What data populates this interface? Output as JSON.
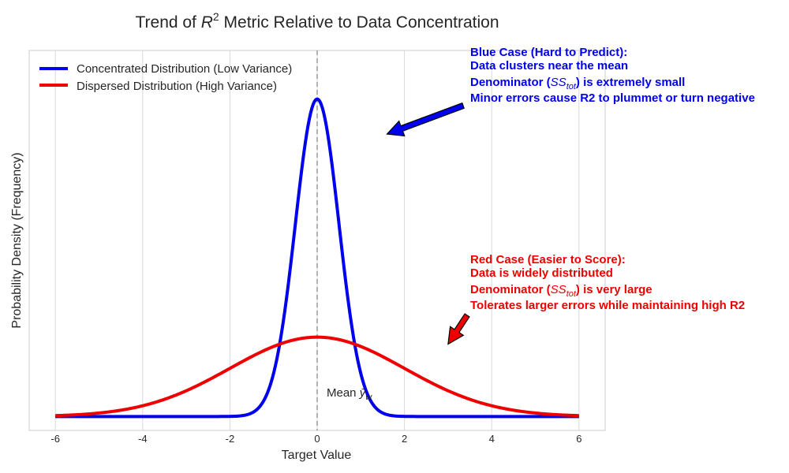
{
  "chart_data": {
    "type": "line",
    "title_prefix": "Trend of ",
    "title_symbol": "R",
    "title_sup": "2",
    "title_suffix": " Metric Relative to Data Concentration",
    "xlabel": "Target Value",
    "ylabel": "Probability Density (Frequency)",
    "xlim": [
      -6.6,
      6.6
    ],
    "ylim": [
      -0.035,
      0.92
    ],
    "x_ticks": [
      -6,
      -4,
      -2,
      0,
      2,
      4,
      6
    ],
    "x_tick_labels": [
      "-6",
      "-4",
      "-2",
      "0",
      "2",
      "4",
      "6"
    ],
    "grid": "vertical",
    "legend_position": "top-left",
    "series": [
      {
        "name": "Concentrated Distribution (Low Variance)",
        "color": "#0000ee",
        "distribution": "normal",
        "mean": 0,
        "std": 0.5,
        "x": [
          -6,
          -4,
          -3,
          -2.5,
          -2,
          -1.75,
          -1.5,
          -1.25,
          -1,
          -0.75,
          -0.5,
          -0.25,
          0,
          0.25,
          0.5,
          0.75,
          1,
          1.25,
          1.5,
          1.75,
          2,
          2.5,
          3,
          4,
          6
        ],
        "y": [
          0,
          0,
          0,
          0.0001,
          0.0027,
          0.0087,
          0.0177,
          0.035,
          0.108,
          0.259,
          0.484,
          0.704,
          0.798,
          0.704,
          0.484,
          0.259,
          0.108,
          0.035,
          0.0177,
          0.0087,
          0.0027,
          0.0001,
          0,
          0,
          0
        ]
      },
      {
        "name": "Dispersed Distribution (High Variance)",
        "color": "#ee0000",
        "distribution": "normal",
        "mean": 0,
        "std": 2,
        "x": [
          -6,
          -5,
          -4,
          -3,
          -2,
          -1,
          0,
          1,
          2,
          3,
          4,
          5,
          6
        ],
        "y": [
          0.0089,
          0.0175,
          0.054,
          0.1295,
          0.121,
          0.176,
          0.199,
          0.176,
          0.121,
          0.065,
          0.027,
          0.0088,
          0.0022
        ]
      }
    ],
    "mean_line": {
      "x": 0,
      "label_prefix": "Mean ",
      "label_symbol": "ȳ",
      "label_sub": "w"
    },
    "annotations": [
      {
        "color": "#0000ee",
        "lines": [
          {
            "text": "Blue Case (Hard to Predict):"
          },
          {
            "text": "Data clusters near the mean"
          },
          {
            "text": "Denominator (",
            "math": "SS",
            "sub": "tot",
            "after": ") is extremely small"
          },
          {
            "text": "Minor errors cause R2 to plummet or turn negative"
          }
        ],
        "arrow_tip": [
          1.6,
          0.71
        ]
      },
      {
        "color": "#ee0000",
        "lines": [
          {
            "text": "Red Case (Easier to Score):"
          },
          {
            "text": "Data is widely distributed"
          },
          {
            "text": "Denominator (",
            "math": "SS",
            "sub": "tot",
            "after": ") is very large"
          },
          {
            "text": "Tolerates larger errors while maintaining high R2"
          }
        ],
        "arrow_tip": [
          3.0,
          0.182
        ]
      }
    ]
  }
}
